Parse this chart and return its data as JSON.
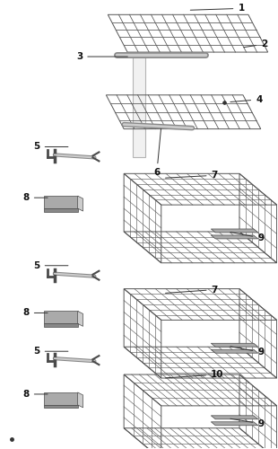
{
  "bg_color": "#ffffff",
  "figsize": [
    3.1,
    5.0
  ],
  "dpi": 100,
  "lc": "#4a4a4a",
  "gray1": "#888888",
  "gray2": "#aaaaaa",
  "gray3": "#cccccc"
}
